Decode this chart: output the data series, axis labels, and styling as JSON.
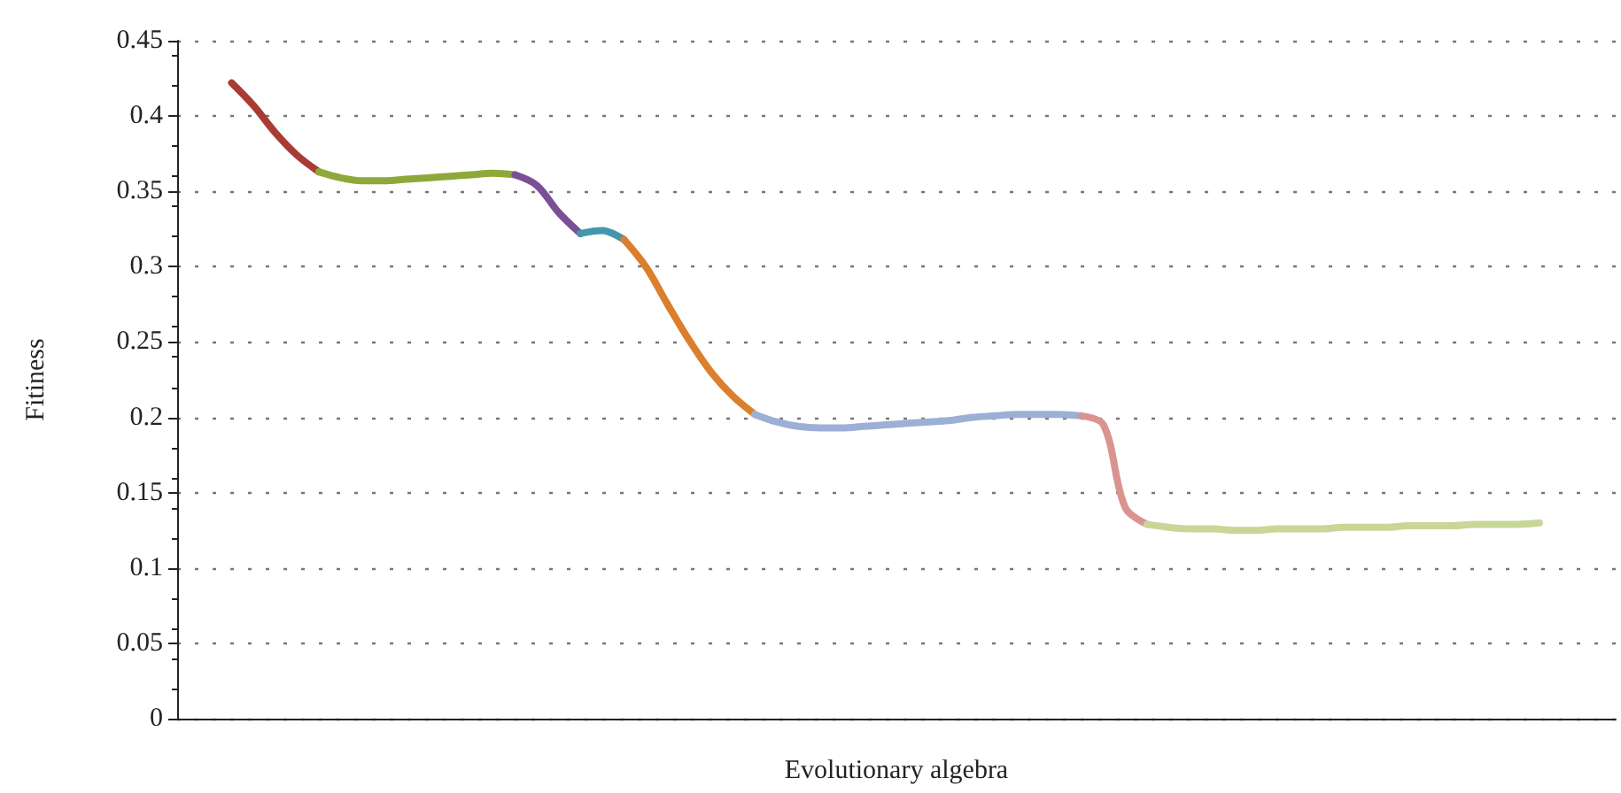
{
  "chart_data": {
    "type": "line",
    "xlabel": "Evolutionary algebra",
    "ylabel": "Fitiness",
    "ylim": [
      0,
      0.45
    ],
    "yticks": [
      0,
      0.05,
      0.1,
      0.15,
      0.2,
      0.25,
      0.3,
      0.35,
      0.4,
      0.45
    ],
    "grid": "y",
    "marker": "none",
    "line_style": "solid",
    "categories": [
      null,
      null,
      null,
      null,
      null,
      null,
      null,
      null,
      null,
      null,
      null,
      null,
      null,
      null,
      null,
      null,
      null,
      null,
      null,
      null,
      null,
      null,
      null,
      null,
      null,
      null,
      null,
      null,
      null,
      null,
      null,
      null,
      null,
      null,
      null,
      null,
      null,
      null,
      null,
      null,
      null,
      null,
      null,
      null,
      null,
      null,
      null,
      null,
      null,
      null,
      null,
      null,
      null,
      null,
      null,
      null,
      null,
      null,
      null,
      null,
      null,
      null,
      null,
      null,
      null,
      null
    ],
    "series": [
      {
        "color": "#a83c35",
        "values": [
          null,
          null,
          0.422,
          0.407,
          0.389,
          0.374,
          0.363,
          null,
          null,
          null,
          null,
          null,
          null,
          null,
          null,
          null,
          null,
          null,
          null,
          null,
          null,
          null,
          null,
          null,
          null,
          null,
          null,
          null,
          null,
          null,
          null,
          null,
          null,
          null,
          null,
          null,
          null,
          null,
          null,
          null,
          null,
          null,
          null,
          null,
          null,
          null,
          null,
          null,
          null,
          null,
          null,
          null,
          null,
          null,
          null,
          null,
          null,
          null,
          null,
          null,
          null,
          null,
          null,
          null,
          null,
          null
        ]
      },
      {
        "color": "#8ea83a",
        "values": [
          null,
          null,
          null,
          null,
          null,
          null,
          0.363,
          0.359,
          0.357,
          0.357,
          0.358,
          0.359,
          0.36,
          0.361,
          0.362,
          0.361,
          null,
          null,
          null,
          null,
          null,
          null,
          null,
          null,
          null,
          null,
          null,
          null,
          null,
          null,
          null,
          null,
          null,
          null,
          null,
          null,
          null,
          null,
          null,
          null,
          null,
          null,
          null,
          null,
          null,
          null,
          null,
          null,
          null,
          null,
          null,
          null,
          null,
          null,
          null,
          null,
          null,
          null,
          null,
          null,
          null,
          null,
          null,
          null,
          null,
          null
        ]
      },
      {
        "color": "#7a4f96",
        "values": [
          null,
          null,
          null,
          null,
          null,
          null,
          null,
          null,
          null,
          null,
          null,
          null,
          null,
          null,
          null,
          0.361,
          0.354,
          0.336,
          0.322,
          null,
          null,
          null,
          null,
          null,
          null,
          null,
          null,
          null,
          null,
          null,
          null,
          null,
          null,
          null,
          null,
          null,
          null,
          null,
          null,
          null,
          null,
          null,
          null,
          null,
          null,
          null,
          null,
          null,
          null,
          null,
          null,
          null,
          null,
          null,
          null,
          null,
          null,
          null,
          null,
          null,
          null,
          null,
          null,
          null,
          null,
          null
        ]
      },
      {
        "color": "#4595ad",
        "values": [
          null,
          null,
          null,
          null,
          null,
          null,
          null,
          null,
          null,
          null,
          null,
          null,
          null,
          null,
          null,
          null,
          null,
          null,
          0.322,
          0.324,
          0.318,
          null,
          null,
          null,
          null,
          null,
          null,
          null,
          null,
          null,
          null,
          null,
          null,
          null,
          null,
          null,
          null,
          null,
          null,
          null,
          null,
          null,
          null,
          null,
          null,
          null,
          null,
          null,
          null,
          null,
          null,
          null,
          null,
          null,
          null,
          null,
          null,
          null,
          null,
          null,
          null,
          null,
          null,
          null,
          null,
          null
        ]
      },
      {
        "color": "#dc7f2c",
        "values": [
          null,
          null,
          null,
          null,
          null,
          null,
          null,
          null,
          null,
          null,
          null,
          null,
          null,
          null,
          null,
          null,
          null,
          null,
          null,
          null,
          0.318,
          0.3,
          0.275,
          0.251,
          0.23,
          0.214,
          0.202,
          null,
          null,
          null,
          null,
          null,
          null,
          null,
          null,
          null,
          null,
          null,
          null,
          null,
          null,
          null,
          null,
          null,
          null,
          null,
          null,
          null,
          null,
          null,
          null,
          null,
          null,
          null,
          null,
          null,
          null,
          null,
          null,
          null,
          null,
          null,
          null,
          null,
          null,
          null
        ]
      },
      {
        "color": "#9cb0d6",
        "values": [
          null,
          null,
          null,
          null,
          null,
          null,
          null,
          null,
          null,
          null,
          null,
          null,
          null,
          null,
          null,
          null,
          null,
          null,
          null,
          null,
          null,
          null,
          null,
          null,
          null,
          null,
          0.202,
          0.197,
          0.194,
          0.193,
          0.193,
          0.194,
          0.195,
          0.196,
          0.197,
          0.198,
          0.2,
          0.201,
          0.202,
          0.202,
          0.202,
          0.201,
          null,
          null,
          null,
          null,
          null,
          null,
          null,
          null,
          null,
          null,
          null,
          null,
          null,
          null,
          null,
          null,
          null,
          null,
          null,
          null,
          null,
          null,
          null,
          null
        ]
      },
      {
        "color": "#d99490",
        "values": [
          null,
          null,
          null,
          null,
          null,
          null,
          null,
          null,
          null,
          null,
          null,
          null,
          null,
          null,
          null,
          null,
          null,
          null,
          null,
          null,
          null,
          null,
          null,
          null,
          null,
          null,
          null,
          null,
          null,
          null,
          null,
          null,
          null,
          null,
          null,
          null,
          null,
          null,
          null,
          null,
          null,
          0.201,
          0.195,
          0.14,
          0.129,
          null,
          null,
          null,
          null,
          null,
          null,
          null,
          null,
          null,
          null,
          null,
          null,
          null,
          null,
          null,
          null,
          null,
          null,
          null,
          null,
          null
        ]
      },
      {
        "color": "#c8d696",
        "values": [
          null,
          null,
          null,
          null,
          null,
          null,
          null,
          null,
          null,
          null,
          null,
          null,
          null,
          null,
          null,
          null,
          null,
          null,
          null,
          null,
          null,
          null,
          null,
          null,
          null,
          null,
          null,
          null,
          null,
          null,
          null,
          null,
          null,
          null,
          null,
          null,
          null,
          null,
          null,
          null,
          null,
          null,
          null,
          null,
          0.129,
          0.127,
          0.126,
          0.126,
          0.125,
          0.125,
          0.126,
          0.126,
          0.126,
          0.127,
          0.127,
          0.127,
          0.128,
          0.128,
          0.128,
          0.129,
          0.129,
          0.129,
          0.13,
          null,
          null,
          null
        ]
      }
    ]
  }
}
